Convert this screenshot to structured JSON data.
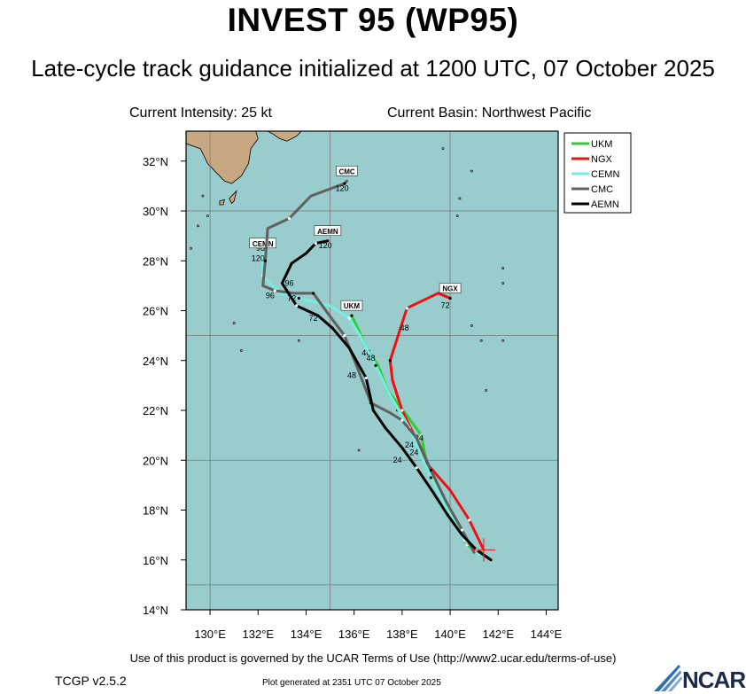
{
  "title": "INVEST 95 (WP95)",
  "subtitle": "Late-cycle track guidance initialized at 1200 UTC, 07 October 2025",
  "current_intensity": "Current Intensity: 25 kt",
  "current_basin": "Current Basin: Northwest Pacific",
  "terms": "Use of this product is governed by the UCAR Terms of Use (http://www2.ucar.edu/terms-of-use)",
  "version": "TCGP v2.5.2",
  "generated": "Plot generated at 2351 UTC   07 October 2025",
  "logo_text": "NCAR",
  "colors": {
    "ocean": "#99cccc",
    "land": "#c8a882",
    "UKM": "#33cc33",
    "NGX": "#ee1111",
    "CEMN": "#77eedd",
    "CMC": "#606060",
    "AEMN": "#000000"
  },
  "chart_data": {
    "type": "line",
    "x_axis": {
      "label": "",
      "lim": [
        129,
        144.5
      ],
      "ticks": [
        130,
        132,
        134,
        136,
        138,
        140,
        142,
        144
      ],
      "tick_labels": [
        "130°E",
        "132°E",
        "134°E",
        "136°E",
        "138°E",
        "140°E",
        "142°E",
        "144°E"
      ]
    },
    "y_axis": {
      "label": "",
      "lim": [
        14,
        33.2
      ],
      "ticks": [
        14,
        16,
        18,
        20,
        22,
        24,
        26,
        28,
        30,
        32
      ],
      "tick_labels": [
        "14°N",
        "16°N",
        "18°N",
        "20°N",
        "22°N",
        "24°N",
        "26°N",
        "28°N",
        "30°N",
        "32°N"
      ]
    },
    "gridlines_lon": [
      130,
      135,
      140
    ],
    "gridlines_lat": [
      15,
      20,
      25,
      30
    ],
    "legend": {
      "position": "top-right",
      "entries": [
        "UKM",
        "NGX",
        "CEMN",
        "CMC",
        "AEMN"
      ]
    },
    "current_position": {
      "lon": 141.4,
      "lat": 16.4
    },
    "series": [
      {
        "name": "UKM",
        "points": [
          [
            141.3,
            16.3
          ],
          [
            140.7,
            16.6
          ],
          [
            140.2,
            17.6
          ],
          [
            139.7,
            18.6
          ],
          [
            139.0,
            20.0
          ],
          [
            138.8,
            21.0
          ],
          [
            138.2,
            21.8
          ],
          [
            137.4,
            22.8
          ],
          [
            137.0,
            23.8
          ],
          [
            136.5,
            24.5
          ],
          [
            136.2,
            25.2
          ],
          [
            135.9,
            25.8
          ]
        ],
        "labels": [
          {
            "text": "24",
            "lon": 138.7,
            "lat": 20.8
          },
          {
            "text": "48",
            "lon": 136.5,
            "lat": 24.2
          }
        ],
        "end_label": "UKM"
      },
      {
        "name": "NGX",
        "points": [
          [
            141.4,
            16.4
          ],
          [
            140.8,
            17.6
          ],
          [
            140.0,
            18.8
          ],
          [
            139.0,
            19.9
          ],
          [
            138.5,
            21.0
          ],
          [
            138.0,
            22.0
          ],
          [
            137.6,
            23.2
          ],
          [
            137.5,
            24.0
          ],
          [
            137.8,
            24.9
          ],
          [
            138.2,
            26.1
          ],
          [
            139.5,
            26.7
          ],
          [
            140.0,
            26.5
          ]
        ],
        "labels": [
          {
            "text": "48",
            "lon": 138.1,
            "lat": 25.2
          },
          {
            "text": "72",
            "lon": 139.8,
            "lat": 26.1
          }
        ],
        "end_label": "NGX"
      },
      {
        "name": "CEMN",
        "points": [
          [
            141.2,
            16.2
          ],
          [
            140.6,
            16.8
          ],
          [
            139.9,
            18.0
          ],
          [
            139.2,
            19.3
          ],
          [
            138.7,
            20.4
          ],
          [
            138.3,
            21.3
          ],
          [
            137.5,
            22.6
          ],
          [
            136.9,
            23.8
          ],
          [
            136.3,
            24.9
          ],
          [
            135.8,
            25.7
          ],
          [
            135.0,
            26.2
          ],
          [
            133.7,
            26.5
          ],
          [
            132.9,
            26.7
          ],
          [
            132.2,
            27.4
          ],
          [
            132.2,
            28.3
          ]
        ],
        "labels": [
          {
            "text": "24",
            "lon": 138.3,
            "lat": 20.5
          },
          {
            "text": "48",
            "lon": 136.7,
            "lat": 24.0
          },
          {
            "text": "72",
            "lon": 133.4,
            "lat": 26.4
          },
          {
            "text": "96",
            "lon": 132.1,
            "lat": 28.4
          },
          {
            "text": "120",
            "lon": 132.0,
            "lat": 28.0
          }
        ],
        "end_label": "CEMN"
      },
      {
        "name": "CMC",
        "points": [
          [
            141.0,
            16.3
          ],
          [
            140.5,
            17.2
          ],
          [
            139.8,
            18.4
          ],
          [
            139.2,
            19.6
          ],
          [
            138.6,
            20.9
          ],
          [
            138.0,
            21.6
          ],
          [
            137.5,
            21.9
          ],
          [
            136.7,
            22.3
          ],
          [
            136.1,
            23.8
          ],
          [
            135.6,
            25.0
          ],
          [
            134.9,
            25.9
          ],
          [
            134.3,
            26.7
          ],
          [
            133.5,
            26.7
          ],
          [
            132.7,
            26.8
          ],
          [
            132.2,
            27.0
          ],
          [
            132.3,
            28.0
          ],
          [
            132.4,
            29.3
          ],
          [
            133.3,
            29.7
          ],
          [
            134.2,
            30.6
          ],
          [
            135.6,
            31.1
          ],
          [
            135.7,
            31.2
          ]
        ],
        "labels": [
          {
            "text": "24",
            "lon": 138.5,
            "lat": 20.2
          },
          {
            "text": "96",
            "lon": 132.5,
            "lat": 26.5
          },
          {
            "text": "120",
            "lon": 135.5,
            "lat": 30.8
          }
        ],
        "end_label": "CMC"
      },
      {
        "name": "AEMN",
        "points": [
          [
            141.7,
            16.0
          ],
          [
            141.1,
            16.4
          ],
          [
            140.5,
            17.0
          ],
          [
            139.9,
            17.8
          ],
          [
            139.3,
            18.7
          ],
          [
            138.6,
            19.7
          ],
          [
            138.0,
            20.5
          ],
          [
            137.3,
            21.3
          ],
          [
            136.8,
            22.0
          ],
          [
            136.5,
            23.3
          ],
          [
            135.8,
            24.5
          ],
          [
            135.1,
            25.3
          ],
          [
            134.5,
            25.8
          ],
          [
            133.6,
            26.2
          ],
          [
            133.0,
            27.1
          ],
          [
            133.4,
            27.9
          ],
          [
            134.0,
            28.3
          ],
          [
            134.4,
            28.7
          ],
          [
            134.9,
            28.8
          ]
        ],
        "labels": [
          {
            "text": "24",
            "lon": 137.8,
            "lat": 19.9
          },
          {
            "text": "48",
            "lon": 135.9,
            "lat": 23.3
          },
          {
            "text": "72",
            "lon": 134.3,
            "lat": 25.6
          },
          {
            "text": "96",
            "lon": 133.3,
            "lat": 27.0
          },
          {
            "text": "120",
            "lon": 134.8,
            "lat": 28.5
          }
        ],
        "end_label": "AEMN"
      }
    ]
  }
}
